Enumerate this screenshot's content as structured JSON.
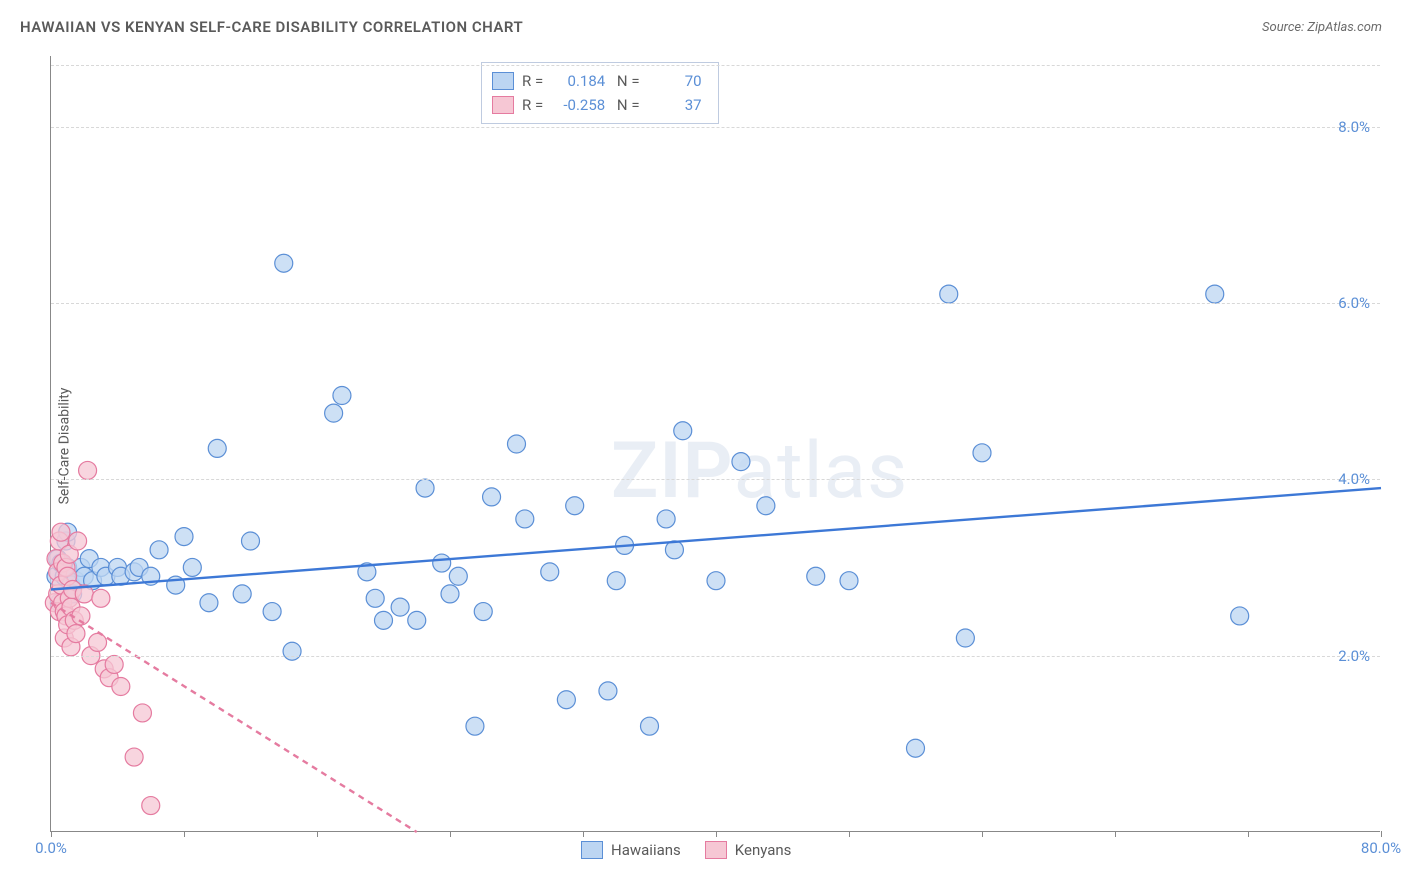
{
  "title": "HAWAIIAN VS KENYAN SELF-CARE DISABILITY CORRELATION CHART",
  "source": "Source: ZipAtlas.com",
  "y_axis_label": "Self-Care Disability",
  "watermark": {
    "bold": "ZIP",
    "light": "atlas"
  },
  "chart": {
    "type": "scatter",
    "background_color": "#ffffff",
    "grid_color": "#d8d8d8",
    "axis_color": "#888888",
    "tick_label_color": "#5b8fd6",
    "tick_fontsize": 15,
    "title_fontsize": 15,
    "xlim": [
      0,
      80
    ],
    "ylim": [
      0,
      8.8
    ],
    "y_ticks": [
      {
        "v": 2.0,
        "label": "2.0%"
      },
      {
        "v": 4.0,
        "label": "4.0%"
      },
      {
        "v": 6.0,
        "label": "6.0%"
      },
      {
        "v": 8.0,
        "label": "8.0%"
      }
    ],
    "x_ticks_minor": [
      0,
      8,
      16,
      24,
      32,
      40,
      48,
      56,
      64,
      72,
      80
    ],
    "x_tick_labels": [
      {
        "v": 0,
        "label": "0.0%"
      },
      {
        "v": 80,
        "label": "80.0%"
      }
    ],
    "marker_radius": 9,
    "marker_stroke_width": 1.2,
    "trend_line_width": 2.4,
    "series": [
      {
        "name": "Hawaiians",
        "fill": "#bcd5f2",
        "stroke": "#5b8fd6",
        "line_color": "#3d78d6",
        "line_dash": "none",
        "R": "0.184",
        "N": "70",
        "trend": {
          "x1": 0,
          "y1": 2.75,
          "x2": 80,
          "y2": 3.9
        },
        "points": [
          [
            0.3,
            2.9
          ],
          [
            0.4,
            3.1
          ],
          [
            0.5,
            2.6
          ],
          [
            0.6,
            3.05
          ],
          [
            0.8,
            2.9
          ],
          [
            0.9,
            3.3
          ],
          [
            1.0,
            3.0
          ],
          [
            1.0,
            3.4
          ],
          [
            1.2,
            2.8
          ],
          [
            1.3,
            2.7
          ],
          [
            1.5,
            2.85
          ],
          [
            1.8,
            3.0
          ],
          [
            2.0,
            2.9
          ],
          [
            2.3,
            3.1
          ],
          [
            2.5,
            2.85
          ],
          [
            3.0,
            3.0
          ],
          [
            3.3,
            2.9
          ],
          [
            4.0,
            3.0
          ],
          [
            4.2,
            2.9
          ],
          [
            5.0,
            2.95
          ],
          [
            5.3,
            3.0
          ],
          [
            6.0,
            2.9
          ],
          [
            6.5,
            3.2
          ],
          [
            7.5,
            2.8
          ],
          [
            8.0,
            3.35
          ],
          [
            8.5,
            3.0
          ],
          [
            9.5,
            2.6
          ],
          [
            10.0,
            4.35
          ],
          [
            11.5,
            2.7
          ],
          [
            12.0,
            3.3
          ],
          [
            13.3,
            2.5
          ],
          [
            14.0,
            6.45
          ],
          [
            14.5,
            2.05
          ],
          [
            17.0,
            4.75
          ],
          [
            17.5,
            4.95
          ],
          [
            19.0,
            2.95
          ],
          [
            19.5,
            2.65
          ],
          [
            20.0,
            2.4
          ],
          [
            21.0,
            2.55
          ],
          [
            22.0,
            2.4
          ],
          [
            22.5,
            3.9
          ],
          [
            23.5,
            3.05
          ],
          [
            24.0,
            2.7
          ],
          [
            24.5,
            2.9
          ],
          [
            25.5,
            1.2
          ],
          [
            26.0,
            2.5
          ],
          [
            26.5,
            3.8
          ],
          [
            28.0,
            4.4
          ],
          [
            28.5,
            3.55
          ],
          [
            30.0,
            2.95
          ],
          [
            31.0,
            1.5
          ],
          [
            31.5,
            3.7
          ],
          [
            33.5,
            1.6
          ],
          [
            34.0,
            2.85
          ],
          [
            34.5,
            3.25
          ],
          [
            36.0,
            1.2
          ],
          [
            37.0,
            3.55
          ],
          [
            37.5,
            3.2
          ],
          [
            38.0,
            4.55
          ],
          [
            40.0,
            2.85
          ],
          [
            41.5,
            4.2
          ],
          [
            43.0,
            3.7
          ],
          [
            46.0,
            2.9
          ],
          [
            48.0,
            2.85
          ],
          [
            52.0,
            0.95
          ],
          [
            54.0,
            6.1
          ],
          [
            55.0,
            2.2
          ],
          [
            56.0,
            4.3
          ],
          [
            70.0,
            6.1
          ],
          [
            71.5,
            2.45
          ]
        ]
      },
      {
        "name": "Kenyans",
        "fill": "#f6c7d4",
        "stroke": "#e57ba0",
        "line_color": "#e57ba0",
        "line_dash": "6 5",
        "R": "-0.258",
        "N": "37",
        "trend": {
          "x1": 0,
          "y1": 2.6,
          "x2": 22,
          "y2": 0
        },
        "points": [
          [
            0.2,
            2.6
          ],
          [
            0.3,
            3.1
          ],
          [
            0.4,
            2.7
          ],
          [
            0.4,
            2.95
          ],
          [
            0.5,
            2.5
          ],
          [
            0.5,
            3.3
          ],
          [
            0.6,
            2.8
          ],
          [
            0.6,
            3.4
          ],
          [
            0.7,
            2.6
          ],
          [
            0.7,
            3.05
          ],
          [
            0.8,
            2.5
          ],
          [
            0.8,
            2.2
          ],
          [
            0.9,
            3.0
          ],
          [
            0.9,
            2.45
          ],
          [
            1.0,
            2.35
          ],
          [
            1.0,
            2.9
          ],
          [
            1.1,
            2.65
          ],
          [
            1.1,
            3.15
          ],
          [
            1.2,
            2.55
          ],
          [
            1.2,
            2.1
          ],
          [
            1.3,
            2.75
          ],
          [
            1.4,
            2.4
          ],
          [
            1.5,
            2.25
          ],
          [
            1.6,
            3.3
          ],
          [
            1.8,
            2.45
          ],
          [
            2.0,
            2.7
          ],
          [
            2.2,
            4.1
          ],
          [
            2.4,
            2.0
          ],
          [
            2.8,
            2.15
          ],
          [
            3.0,
            2.65
          ],
          [
            3.2,
            1.85
          ],
          [
            3.5,
            1.75
          ],
          [
            3.8,
            1.9
          ],
          [
            4.2,
            1.65
          ],
          [
            5.0,
            0.85
          ],
          [
            5.5,
            1.35
          ],
          [
            6.0,
            0.3
          ]
        ]
      }
    ]
  },
  "legend_bottom": [
    {
      "label": "Hawaiians",
      "fill": "#bcd5f2",
      "stroke": "#5b8fd6"
    },
    {
      "label": "Kenyans",
      "fill": "#f6c7d4",
      "stroke": "#e57ba0"
    }
  ]
}
